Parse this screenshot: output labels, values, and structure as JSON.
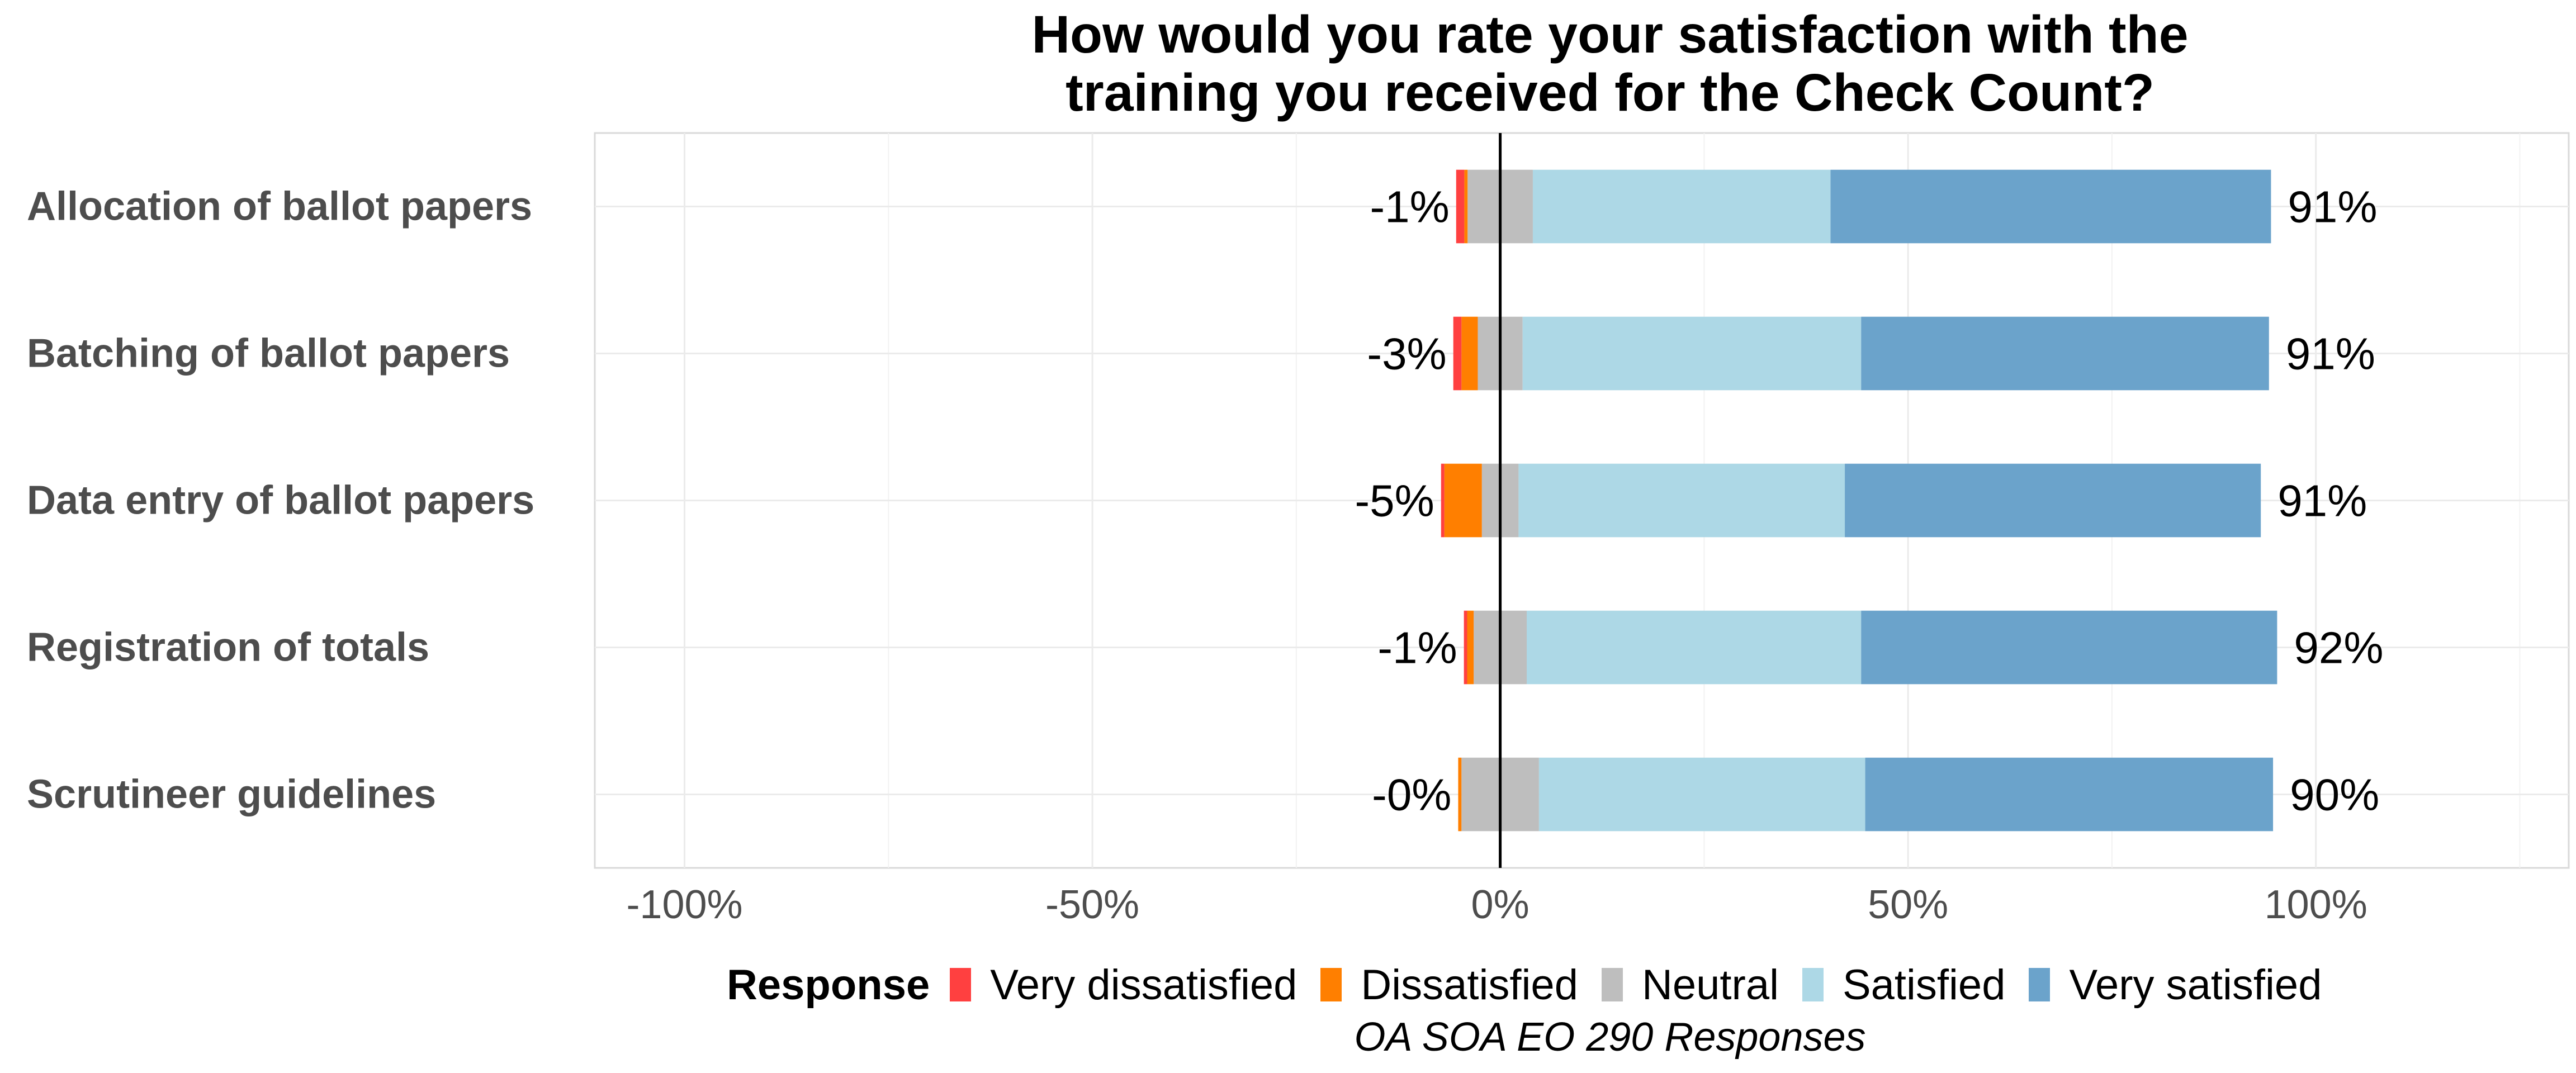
{
  "chart_data": {
    "type": "bar",
    "orientation": "horizontal",
    "stacked": "diverging",
    "title": "How would you rate your satisfaction with the training you received for the Check Count?",
    "title_lines": [
      "How would you rate your satisfaction with the",
      "training you received for the Check Count?"
    ],
    "categories": [
      "Allocation of ballot papers",
      "Batching of ballot papers",
      "Data entry of ballot papers",
      "Registration of totals",
      "Scrutineer guidelines"
    ],
    "series": [
      {
        "name": "Very dissatisfied",
        "color": "#FF4040",
        "values": [
          -1.0,
          -1.0,
          -0.4,
          -0.4,
          0
        ]
      },
      {
        "name": "Dissatisfied",
        "color": "#FF7F00",
        "values": [
          -0.4,
          -2.0,
          -4.6,
          -0.8,
          -0.4
        ]
      },
      {
        "name": "Neutral",
        "color": "#BEBEBE",
        "values": [
          8,
          5.5,
          4.5,
          6.5,
          9.5
        ]
      },
      {
        "name": "Satisfied",
        "color": "#ADD8E6",
        "values": [
          36.5,
          41.5,
          40,
          41,
          40
        ]
      },
      {
        "name": "Very satisfied",
        "color": "#6BA3CB",
        "values": [
          54,
          50,
          51,
          51,
          50
        ]
      }
    ],
    "left_labels": [
      "-1%",
      "-3%",
      "-5%",
      "-1%",
      "-0%"
    ],
    "right_labels": [
      "91%",
      "91%",
      "91%",
      "92%",
      "90%"
    ],
    "x_ticks": [
      -100,
      -50,
      0,
      50,
      100
    ],
    "x_tick_labels": [
      "-100%",
      "-50%",
      "0%",
      "50%",
      "100%"
    ],
    "xlim": [
      -111,
      131
    ],
    "legend_title": "Response",
    "legend_position": "bottom",
    "caption": "OA SOA EO 290 Responses",
    "grid": true,
    "zero_line": true
  }
}
